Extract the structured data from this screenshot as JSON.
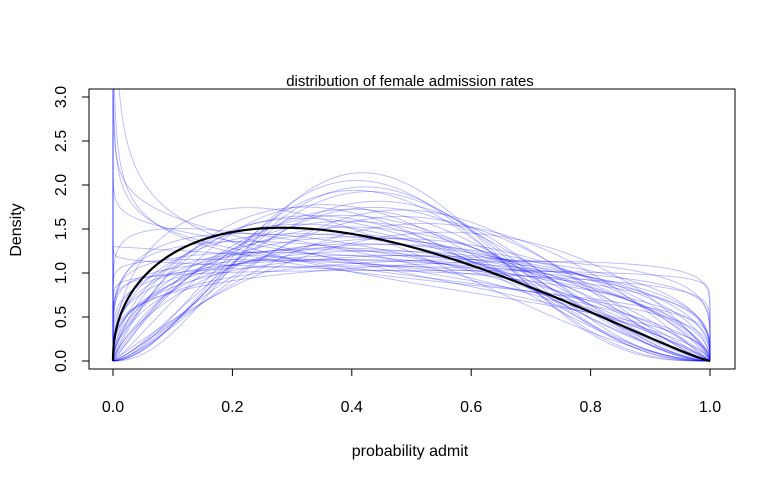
{
  "chart_data": {
    "type": "line",
    "title": "distribution of female admission rates",
    "xlabel": "probability admit",
    "ylabel": "Density",
    "xlim": [
      0,
      1
    ],
    "ylim": [
      0,
      3.1
    ],
    "x_ticks": [
      "0.0",
      "0.2",
      "0.4",
      "0.6",
      "0.8",
      "1.0"
    ],
    "y_ticks": [
      "0.0",
      "0.5",
      "1.0",
      "1.5",
      "2.0",
      "2.5",
      "3.0"
    ],
    "grid": false,
    "legend": "none",
    "curve_family": "beta",
    "x_sample": [
      0,
      0.01,
      0.05,
      0.1,
      0.2,
      0.3,
      0.4,
      0.5,
      0.6,
      0.7,
      0.8,
      0.9,
      0.95,
      0.99,
      1
    ],
    "mean_curve": {
      "color": "#000000",
      "alpha": 1.46,
      "beta": 2.16,
      "y_sample": [
        0,
        0.6,
        0.95,
        1.14,
        1.31,
        1.35,
        1.32,
        1.23,
        1.1,
        0.93,
        0.7,
        0.43,
        0.28,
        0.09,
        0
      ]
    },
    "sample_curves": {
      "color": "#0000ff",
      "count": 50,
      "params": [
        [
          1.3,
          1.4
        ],
        [
          1.6,
          1.9
        ],
        [
          2.0,
          2.6
        ],
        [
          2.4,
          2.8
        ],
        [
          1.8,
          2.2
        ],
        [
          1.5,
          1.7
        ],
        [
          2.8,
          3.4
        ],
        [
          3.0,
          3.9
        ],
        [
          1.2,
          1.3
        ],
        [
          1.1,
          1.15
        ],
        [
          1.25,
          1.1
        ],
        [
          1.05,
          1.05
        ],
        [
          1.15,
          1.3
        ],
        [
          1.7,
          1.8
        ],
        [
          2.2,
          2.1
        ],
        [
          2.6,
          3.0
        ],
        [
          1.9,
          2.4
        ],
        [
          1.35,
          1.6
        ],
        [
          1.45,
          2.0
        ],
        [
          1.6,
          2.3
        ],
        [
          3.3,
          4.2
        ],
        [
          2.1,
          3.0
        ],
        [
          1.25,
          1.9
        ],
        [
          0.85,
          1.3
        ],
        [
          0.8,
          1.2
        ],
        [
          0.9,
          1.6
        ],
        [
          0.75,
          1.4
        ],
        [
          0.95,
          1.5
        ],
        [
          1.0,
          1.3
        ],
        [
          1.1,
          1.8
        ],
        [
          2.5,
          2.6
        ],
        [
          1.3,
          1.2
        ],
        [
          1.2,
          1.7
        ],
        [
          2.0,
          1.8
        ],
        [
          1.4,
          1.5
        ],
        [
          1.7,
          2.5
        ],
        [
          2.3,
          2.4
        ],
        [
          1.05,
          1.25
        ],
        [
          1.5,
          2.7
        ],
        [
          2.7,
          3.5
        ],
        [
          1.15,
          1.45
        ],
        [
          1.9,
          2.9
        ],
        [
          1.35,
          1.35
        ],
        [
          1.6,
          2.0
        ],
        [
          2.2,
          2.8
        ],
        [
          0.98,
          1.1
        ],
        [
          1.8,
          2.6
        ],
        [
          1.28,
          1.55
        ],
        [
          2.9,
          3.6
        ],
        [
          1.55,
          1.65
        ]
      ]
    }
  }
}
